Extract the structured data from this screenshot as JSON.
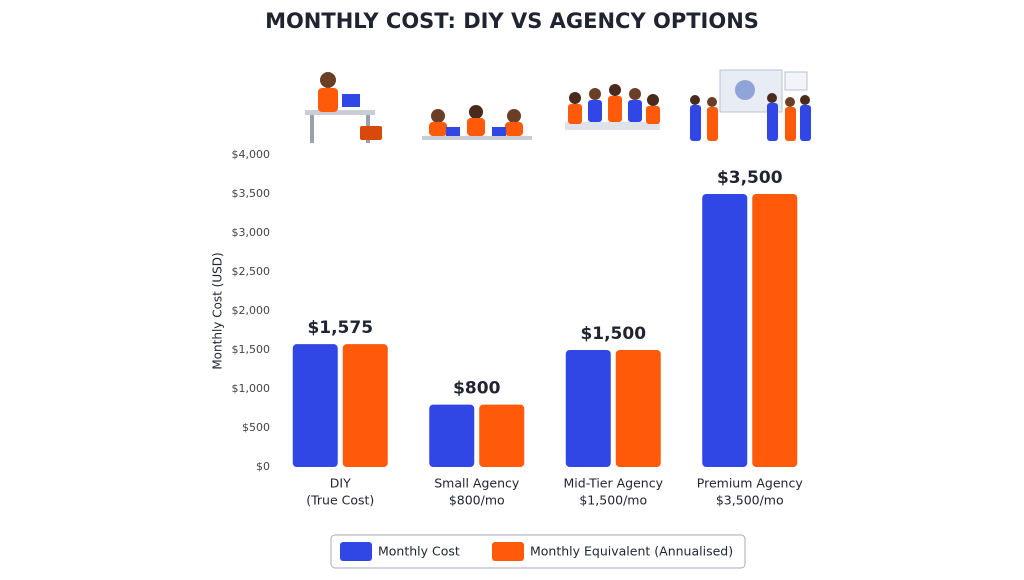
{
  "chart_data": {
    "type": "bar",
    "title": "MONTHLY COST: DIY VS AGENCY OPTIONS",
    "y_label": "Monthly Cost (USD)",
    "categories": [
      "DIY",
      "Small Agency",
      "Mid-Tier Agency",
      "Premium Agency"
    ],
    "category_sublabels": [
      "(True Cost)",
      "$800/mo",
      "$1,500/mo",
      "$3,500/mo"
    ],
    "series": [
      {
        "name": "Monthly Cost",
        "color": "#3047e6",
        "values": [
          1575,
          800,
          1500,
          3500
        ],
        "value_labels": [
          "$1,575",
          "$800",
          "$1,500",
          "$3,500"
        ]
      },
      {
        "name": "Monthly Equivalent (Annualised)",
        "color": "#ff5a0a",
        "values": [
          1575,
          800,
          1500,
          3500
        ]
      }
    ],
    "ylim": [
      0,
      4000
    ],
    "yticks": [
      {
        "value": 0,
        "label": "$0"
      },
      {
        "value": 500,
        "label": "$500"
      },
      {
        "value": 1000,
        "label": "$1,000"
      },
      {
        "value": 1500,
        "label": "$1,500"
      },
      {
        "value": 2000,
        "label": "$2,000"
      },
      {
        "value": 2500,
        "label": "$2,500"
      },
      {
        "value": 3000,
        "label": "$3,000"
      },
      {
        "value": 3500,
        "label": "$3,500"
      },
      {
        "value": 4000,
        "label": "$4,000"
      }
    ],
    "grid": false,
    "legend": "bottom"
  }
}
